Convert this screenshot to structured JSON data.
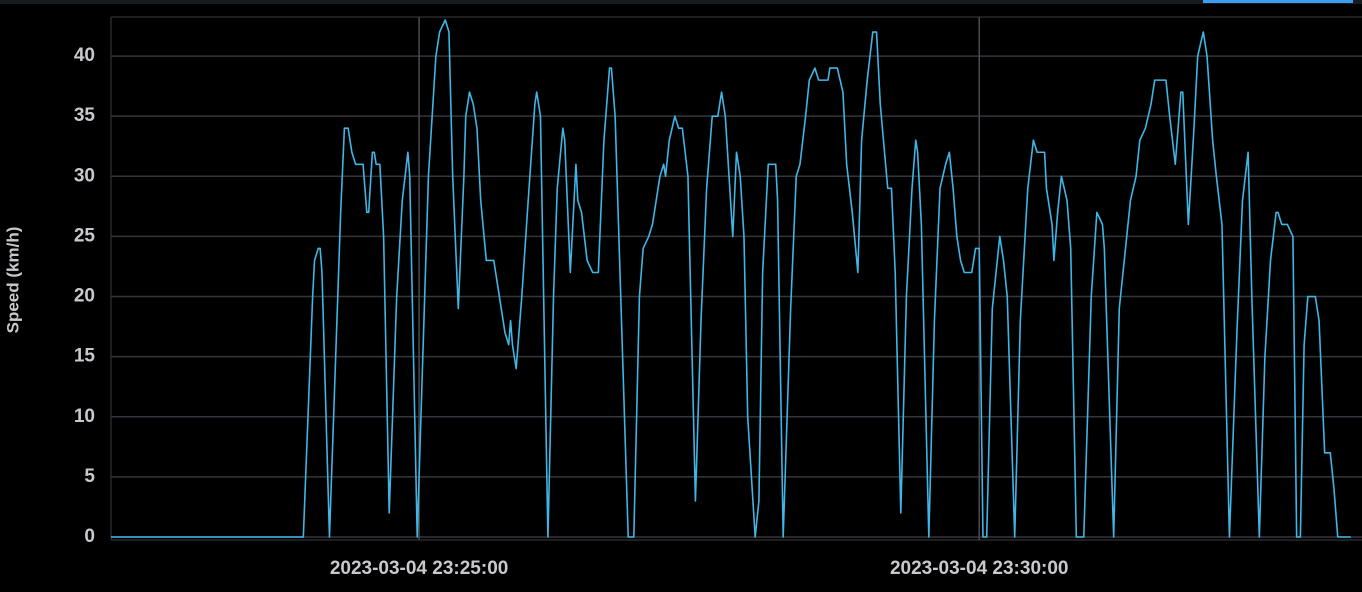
{
  "chart_data": {
    "type": "line",
    "y_label": "Speed (km/h)",
    "color": "#3fb6e6",
    "grid": true,
    "xlim": [
      "2023-03-04 23:22:15",
      "2023-03-04 23:33:25"
    ],
    "xticks": [
      "2023-03-04 23:25:00",
      "2023-03-04 23:30:00"
    ],
    "ylim": [
      0,
      43
    ],
    "yticks": [
      0,
      5,
      10,
      15,
      20,
      25,
      30,
      35,
      40
    ],
    "x": [
      "2023-03-04 23:22:15",
      "2023-03-04 23:23:58",
      "2023-03-04 23:24:03",
      "2023-03-04 23:24:04",
      "2023-03-04 23:24:06",
      "2023-03-04 23:24:07",
      "2023-03-04 23:24:08",
      "2023-03-04 23:24:12",
      "2023-03-04 23:24:18",
      "2023-03-04 23:24:20",
      "2023-03-04 23:24:22",
      "2023-03-04 23:24:24",
      "2023-03-04 23:24:26",
      "2023-03-04 23:24:30",
      "2023-03-04 23:24:32",
      "2023-03-04 23:24:33",
      "2023-03-04 23:24:35",
      "2023-03-04 23:24:36",
      "2023-03-04 23:24:37",
      "2023-03-04 23:24:39",
      "2023-03-04 23:24:41",
      "2023-03-04 23:24:44",
      "2023-03-04 23:24:48",
      "2023-03-04 23:24:51",
      "2023-03-04 23:24:54",
      "2023-03-04 23:24:55",
      "2023-03-04 23:24:59",
      "2023-03-04 23:25:05",
      "2023-03-04 23:25:09",
      "2023-03-04 23:25:11",
      "2023-03-04 23:25:14",
      "2023-03-04 23:25:16",
      "2023-03-04 23:25:18",
      "2023-03-04 23:25:21",
      "2023-03-04 23:25:24",
      "2023-03-04 23:25:25",
      "2023-03-04 23:25:27",
      "2023-03-04 23:25:29",
      "2023-03-04 23:25:31",
      "2023-03-04 23:25:33",
      "2023-03-04 23:25:36",
      "2023-03-04 23:25:40",
      "2023-03-04 23:25:42",
      "2023-03-04 23:25:44",
      "2023-03-04 23:25:46",
      "2023-03-04 23:25:48",
      "2023-03-04 23:25:49",
      "2023-03-04 23:25:50",
      "2023-03-04 23:25:52",
      "2023-03-04 23:25:55",
      "2023-03-04 23:25:58",
      "2023-03-04 23:26:02",
      "2023-03-04 23:26:03",
      "2023-03-04 23:26:05",
      "2023-03-04 23:26:09",
      "2023-03-04 23:26:12",
      "2023-03-04 23:26:14",
      "2023-03-04 23:26:17",
      "2023-03-04 23:26:18",
      "2023-03-04 23:26:21",
      "2023-03-04 23:26:24",
      "2023-03-04 23:26:25",
      "2023-03-04 23:26:27",
      "2023-03-04 23:26:30",
      "2023-03-04 23:26:33",
      "2023-03-04 23:26:36",
      "2023-03-04 23:26:39",
      "2023-03-04 23:26:42",
      "2023-03-04 23:26:43",
      "2023-03-04 23:26:45",
      "2023-03-04 23:26:48",
      "2023-03-04 23:26:52",
      "2023-03-04 23:26:55",
      "2023-03-04 23:26:58",
      "2023-03-04 23:27:00",
      "2023-03-04 23:27:03",
      "2023-03-04 23:27:05",
      "2023-03-04 23:27:07",
      "2023-03-04 23:27:09",
      "2023-03-04 23:27:11",
      "2023-03-04 23:27:12",
      "2023-03-04 23:27:14",
      "2023-03-04 23:27:17",
      "2023-03-04 23:27:19",
      "2023-03-04 23:27:21",
      "2023-03-04 23:27:24",
      "2023-03-04 23:27:28",
      "2023-03-04 23:27:31",
      "2023-03-04 23:27:34",
      "2023-03-04 23:27:37",
      "2023-03-04 23:27:40",
      "2023-03-04 23:27:42",
      "2023-03-04 23:27:44",
      "2023-03-04 23:27:46",
      "2023-03-04 23:27:48",
      "2023-03-04 23:27:50",
      "2023-03-04 23:27:52",
      "2023-03-04 23:27:54",
      "2023-03-04 23:27:56",
      "2023-03-04 23:28:00",
      "2023-03-04 23:28:02",
      "2023-03-04 23:28:04",
      "2023-03-04 23:28:07",
      "2023-03-04 23:28:11",
      "2023-03-04 23:28:12",
      "2023-03-04 23:28:15",
      "2023-03-04 23:28:19",
      "2023-03-04 23:28:22",
      "2023-03-04 23:28:24",
      "2023-03-04 23:28:27",
      "2023-03-04 23:28:29",
      "2023-03-04 23:28:32",
      "2023-03-04 23:28:34",
      "2023-03-04 23:28:39",
      "2023-03-04 23:28:40",
      "2023-03-04 23:28:44",
      "2023-03-04 23:28:47",
      "2023-03-04 23:28:49",
      "2023-03-04 23:28:52",
      "2023-03-04 23:28:55",
      "2023-03-04 23:28:57",
      "2023-03-04 23:29:00",
      "2023-03-04 23:29:03",
      "2023-03-04 23:29:05",
      "2023-03-04 23:29:07",
      "2023-03-04 23:29:11",
      "2023-03-04 23:29:13",
      "2023-03-04 23:29:15",
      "2023-03-04 23:29:18",
      "2023-03-04 23:29:21",
      "2023-03-04 23:29:24",
      "2023-03-04 23:29:26",
      "2023-03-04 23:29:27",
      "2023-03-04 23:29:29",
      "2023-03-04 23:29:33",
      "2023-03-04 23:29:36",
      "2023-03-04 23:29:39",
      "2023-03-04 23:29:42",
      "2023-03-04 23:29:44",
      "2023-03-04 23:29:46",
      "2023-03-04 23:29:48",
      "2023-03-04 23:29:50",
      "2023-03-04 23:29:52",
      "2023-03-04 23:29:56",
      "2023-03-04 23:29:58",
      "2023-03-04 23:30:00",
      "2023-03-04 23:30:02",
      "2023-03-04 23:30:04",
      "2023-03-04 23:30:07",
      "2023-03-04 23:30:11",
      "2023-03-04 23:30:13",
      "2023-03-04 23:30:15",
      "2023-03-04 23:30:19",
      "2023-03-04 23:30:22",
      "2023-03-04 23:30:26",
      "2023-03-04 23:30:29",
      "2023-03-04 23:30:31",
      "2023-03-04 23:30:35",
      "2023-03-04 23:30:36",
      "2023-03-04 23:30:39",
      "2023-03-04 23:30:40",
      "2023-03-04 23:30:42",
      "2023-03-04 23:30:44",
      "2023-03-04 23:30:47",
      "2023-03-04 23:30:49",
      "2023-03-04 23:30:52",
      "2023-03-04 23:30:56",
      "2023-03-04 23:31:00",
      "2023-03-04 23:31:03",
      "2023-03-04 23:31:06",
      "2023-03-04 23:31:07",
      "2023-03-04 23:31:12",
      "2023-03-04 23:31:15",
      "2023-03-04 23:31:19",
      "2023-03-04 23:31:21",
      "2023-03-04 23:31:24",
      "2023-03-04 23:31:26",
      "2023-03-04 23:31:29",
      "2023-03-04 23:31:32",
      "2023-03-04 23:31:34",
      "2023-03-04 23:31:40",
      "2023-03-04 23:31:42",
      "2023-03-04 23:31:45",
      "2023-03-04 23:31:48",
      "2023-03-04 23:31:49",
      "2023-03-04 23:31:52",
      "2023-03-04 23:31:55",
      "2023-03-04 23:31:57",
      "2023-03-04 23:32:00",
      "2023-03-04 23:32:02",
      "2023-03-04 23:32:05",
      "2023-03-04 23:32:07",
      "2023-03-04 23:32:10",
      "2023-03-04 23:32:14",
      "2023-03-04 23:32:18",
      "2023-03-04 23:32:21",
      "2023-03-04 23:32:24",
      "2023-03-04 23:32:26",
      "2023-03-04 23:32:30",
      "2023-03-04 23:32:33",
      "2023-03-04 23:32:36",
      "2023-03-04 23:32:39",
      "2023-03-04 23:32:40",
      "2023-03-04 23:32:42",
      "2023-03-04 23:32:45",
      "2023-03-04 23:32:48",
      "2023-03-04 23:32:50",
      "2023-03-04 23:32:52",
      "2023-03-04 23:32:54",
      "2023-03-04 23:32:56",
      "2023-03-04 23:33:00",
      "2023-03-04 23:33:02",
      "2023-03-04 23:33:05",
      "2023-03-04 23:33:08",
      "2023-03-04 23:33:10",
      "2023-03-04 23:33:12",
      "2023-03-04 23:33:19"
    ],
    "values": [
      0,
      0,
      20,
      23,
      24,
      24,
      22,
      0,
      27,
      34,
      34,
      32,
      31,
      31,
      27,
      27,
      32,
      32,
      31,
      31,
      25,
      2,
      20,
      28,
      32,
      30,
      0,
      30,
      40,
      42,
      43,
      42,
      30,
      19,
      30,
      35,
      37,
      36,
      34,
      28,
      23,
      23,
      21,
      19,
      17,
      16,
      18,
      16,
      14,
      20,
      27,
      36,
      37,
      35,
      0,
      20,
      29,
      34,
      33,
      22,
      31,
      28,
      27,
      23,
      22,
      22,
      33,
      39,
      39,
      35,
      20,
      0,
      0,
      20,
      24,
      25,
      26,
      28,
      30,
      31,
      30,
      33,
      35,
      34,
      34,
      30,
      3,
      18,
      29,
      35,
      35,
      37,
      35,
      30,
      25,
      32,
      30,
      25,
      10,
      0,
      3,
      22,
      31,
      31,
      28,
      0,
      19,
      30,
      31,
      35,
      38,
      39,
      38,
      38,
      39,
      39,
      37,
      31,
      27,
      22,
      33,
      38,
      42,
      42,
      36,
      29,
      29,
      22,
      2,
      20,
      29,
      33,
      32,
      26,
      0,
      18,
      29,
      31,
      32,
      29,
      25,
      23,
      22,
      22,
      24,
      24,
      0,
      0,
      19,
      25,
      23,
      20,
      0,
      18,
      29,
      33,
      32,
      32,
      29,
      26,
      23,
      27,
      30,
      28,
      24,
      0,
      0,
      20,
      27,
      26,
      24,
      0,
      19,
      25,
      28,
      30,
      33,
      34,
      36,
      38,
      38,
      35,
      31,
      37,
      37,
      26,
      34,
      40,
      42,
      40,
      33,
      30,
      26,
      0,
      17,
      28,
      32,
      20,
      0,
      15,
      23,
      27,
      27,
      26,
      26,
      25,
      0,
      0,
      16,
      20,
      20,
      18,
      7,
      7,
      4,
      0,
      0
    ]
  }
}
